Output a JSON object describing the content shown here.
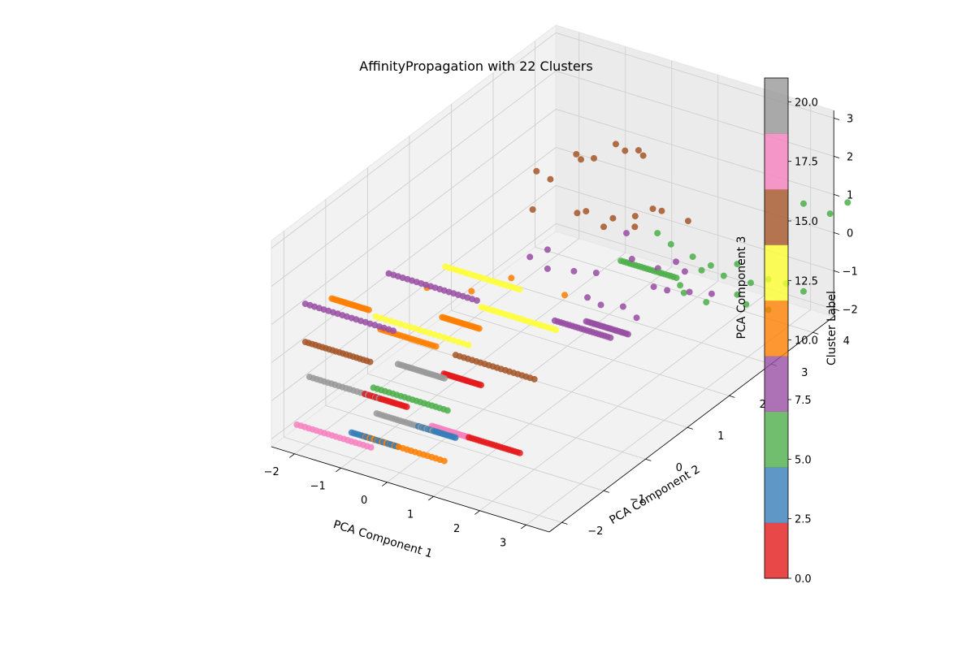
{
  "chart_data": {
    "type": "scatter",
    "title": "AffinityPropagation with 22 Clusters",
    "xlabel": "PCA Component 1",
    "ylabel": "PCA Component 2",
    "zlabel": "PCA Component 3",
    "xticks": [
      "−2",
      "−1",
      "0",
      "1",
      "2",
      "3"
    ],
    "yticks": [
      "−2",
      "−1",
      "0",
      "1",
      "2",
      "3",
      "4"
    ],
    "zticks": [
      "−2",
      "−1",
      "0",
      "1",
      "2",
      "3"
    ],
    "xlim": [
      -2.5,
      3.5
    ],
    "ylim": [
      -2.3,
      4.5
    ],
    "zlim": [
      -2.2,
      3.2
    ],
    "colorbar": {
      "label": "Cluster Label",
      "ticks": [
        "0.0",
        "2.5",
        "5.0",
        "7.5",
        "10.0",
        "12.5",
        "15.0",
        "17.5",
        "20.0"
      ],
      "range": [
        0,
        21
      ],
      "colors": [
        "#e41a1c",
        "#377eb8",
        "#4daf4a",
        "#984ea3",
        "#ff7f00",
        "#ffff33",
        "#a65628",
        "#f781bf",
        "#999999"
      ]
    },
    "grid": true,
    "segments": [
      {
        "cluster": 17,
        "color": "#f781bf",
        "y": -1.8,
        "z": -2.0,
        "x": [
          -2.4,
          -0.8
        ]
      },
      {
        "cluster": 3,
        "color": "#377eb8",
        "y": -1.6,
        "z": -2.0,
        "x": [
          -1.4,
          -0.4
        ]
      },
      {
        "cluster": 10,
        "color": "#ff7f00",
        "y": -1.6,
        "z": -2.0,
        "x": [
          -1.1,
          0.6
        ]
      },
      {
        "cluster": 20,
        "color": "#999999",
        "y": -1.0,
        "z": -2.0,
        "x": [
          -1.4,
          -0.2
        ]
      },
      {
        "cluster": 3,
        "color": "#377eb8",
        "y": -1.0,
        "z": -2.0,
        "x": [
          -0.5,
          0.3
        ]
      },
      {
        "cluster": 17,
        "color": "#f781bf",
        "y": -0.9,
        "z": -2.0,
        "x": [
          -0.3,
          0.5
        ]
      },
      {
        "cluster": 0,
        "color": "#e41a1c",
        "y": -0.9,
        "z": -2.0,
        "x": [
          0.5,
          1.6
        ]
      },
      {
        "cluster": 20,
        "color": "#999999",
        "y": -1.5,
        "z": -1.0,
        "x": [
          -2.4,
          -0.9
        ]
      },
      {
        "cluster": 0,
        "color": "#e41a1c",
        "y": -1.5,
        "z": -1.0,
        "x": [
          -1.2,
          -0.3
        ]
      },
      {
        "cluster": 5,
        "color": "#4daf4a",
        "y": -1.3,
        "z": -1.0,
        "x": [
          -1.2,
          0.4
        ]
      },
      {
        "cluster": 20,
        "color": "#999999",
        "y": -0.6,
        "z": -1.0,
        "x": [
          -1.3,
          -0.3
        ]
      },
      {
        "cluster": 0,
        "color": "#e41a1c",
        "y": -0.5,
        "z": -1.0,
        "x": [
          -0.4,
          0.4
        ]
      },
      {
        "cluster": 15,
        "color": "#a65628",
        "y": 0.0,
        "z": -1.0,
        "x": [
          -0.6,
          1.1
        ]
      },
      {
        "cluster": 15,
        "color": "#a65628",
        "y": -1.6,
        "z": 0.0,
        "x": [
          -2.4,
          -1.0
        ]
      },
      {
        "cluster": 10,
        "color": "#ff7f00",
        "y": -0.8,
        "z": 0.0,
        "x": [
          -1.5,
          -0.3
        ]
      },
      {
        "cluster": 10,
        "color": "#ff7f00",
        "y": -0.1,
        "z": 0.0,
        "x": [
          -0.8,
          0.0
        ]
      },
      {
        "cluster": 12,
        "color": "#ffff33",
        "y": -0.8,
        "z": 0.3,
        "x": [
          -1.6,
          0.4
        ]
      },
      {
        "cluster": 12,
        "color": "#ffff33",
        "y": 0.4,
        "z": 0.0,
        "x": [
          -0.4,
          1.2
        ]
      },
      {
        "cluster": 8,
        "color": "#984ea3",
        "y": 0.6,
        "z": 0.0,
        "x": [
          1.0,
          2.2
        ]
      },
      {
        "cluster": 8,
        "color": "#984ea3",
        "y": -1.6,
        "z": 1.0,
        "x": [
          -2.4,
          -0.5
        ]
      },
      {
        "cluster": 10,
        "color": "#ff7f00",
        "y": -1.3,
        "z": 1.0,
        "x": [
          -2.1,
          -1.3
        ]
      },
      {
        "cluster": 8,
        "color": "#984ea3",
        "y": -0.6,
        "z": 1.3,
        "x": [
          -1.5,
          0.4
        ]
      },
      {
        "cluster": 12,
        "color": "#ffff33",
        "y": 0.2,
        "z": 1.0,
        "x": [
          -1.0,
          0.6
        ]
      },
      {
        "cluster": 8,
        "color": "#984ea3",
        "y": 0.8,
        "z": 0.0,
        "x": [
          1.5,
          2.4
        ]
      },
      {
        "cluster": 5,
        "color": "#4daf4a",
        "y": 2.4,
        "z": 0.0,
        "x": [
          0.8,
          2.0
        ]
      }
    ],
    "points": [
      {
        "cluster": 15,
        "color": "#a65628",
        "points": [
          [
            -0.3,
            1.6,
            2.6
          ],
          [
            0.0,
            1.6,
            2.5
          ],
          [
            0.2,
            2.0,
            2.9
          ],
          [
            0.3,
            2.0,
            2.8
          ],
          [
            0.4,
            2.2,
            2.7
          ],
          [
            0.6,
            2.5,
            2.9
          ],
          [
            0.8,
            2.5,
            2.8
          ],
          [
            1.0,
            2.6,
            2.8
          ],
          [
            1.1,
            2.6,
            2.7
          ],
          [
            -0.2,
            1.4,
            1.8
          ],
          [
            0.4,
            1.8,
            1.6
          ],
          [
            0.5,
            1.9,
            1.6
          ],
          [
            0.9,
            2.1,
            1.4
          ],
          [
            1.2,
            2.3,
            1.4
          ],
          [
            1.4,
            2.5,
            1.5
          ],
          [
            1.5,
            2.6,
            1.4
          ],
          [
            1.8,
            2.9,
            1.0
          ],
          [
            0.7,
            2.1,
            1.1
          ],
          [
            1.1,
            2.4,
            1.0
          ]
        ]
      },
      {
        "cluster": 8,
        "color": "#984ea3",
        "points": [
          [
            0.1,
            1.0,
            1.0
          ],
          [
            0.3,
            1.2,
            0.6
          ],
          [
            0.6,
            1.5,
            0.4
          ],
          [
            0.9,
            1.7,
            0.3
          ],
          [
            1.4,
            2.0,
            0.6
          ],
          [
            1.1,
            2.2,
            1.0
          ],
          [
            1.6,
            2.4,
            0.1
          ],
          [
            1.9,
            2.5,
            0.3
          ],
          [
            2.0,
            2.6,
            0.0
          ],
          [
            1.6,
            2.3,
            -0.3
          ],
          [
            1.8,
            2.4,
            -0.4
          ],
          [
            2.1,
            2.6,
            -0.5
          ],
          [
            2.4,
            2.8,
            -0.6
          ],
          [
            0.8,
            1.6,
            -0.3
          ],
          [
            1.0,
            1.7,
            -0.5
          ],
          [
            1.3,
            1.9,
            -0.6
          ],
          [
            1.5,
            2.0,
            -0.9
          ],
          [
            0.3,
            1.2,
            1.1
          ]
        ]
      },
      {
        "cluster": 5,
        "color": "#4daf4a",
        "points": [
          [
            1.5,
            2.5,
            0.9
          ],
          [
            1.7,
            2.6,
            0.6
          ],
          [
            1.9,
            2.9,
            0.1
          ],
          [
            2.2,
            3.0,
            -0.1
          ],
          [
            2.5,
            3.3,
            -0.2
          ],
          [
            2.7,
            3.4,
            -0.7
          ],
          [
            2.9,
            3.6,
            -0.7
          ],
          [
            3.1,
            3.8,
            -0.9
          ],
          [
            3.3,
            4.0,
            -1.2
          ],
          [
            2.0,
            3.0,
            -0.3
          ],
          [
            2.3,
            3.2,
            -0.5
          ],
          [
            2.5,
            3.3,
            -1.0
          ],
          [
            2.6,
            3.4,
            -1.3
          ],
          [
            2.9,
            3.6,
            -1.5
          ],
          [
            3.3,
            4.0,
            1.1
          ],
          [
            3.6,
            4.3,
            0.7
          ],
          [
            3.8,
            4.5,
            0.9
          ],
          [
            1.8,
            2.8,
            -0.8
          ],
          [
            2.1,
            3.0,
            -1.1
          ],
          [
            1.9,
            2.6,
            -0.4
          ]
        ]
      },
      {
        "cluster": 10,
        "color": "#ff7f00",
        "points": [
          [
            -1.4,
            0.2,
            0.3
          ],
          [
            -0.3,
            1.0,
            0.3
          ],
          [
            0.4,
            1.5,
            -0.3
          ],
          [
            -0.8,
            0.6,
            0.1
          ]
        ]
      }
    ]
  }
}
